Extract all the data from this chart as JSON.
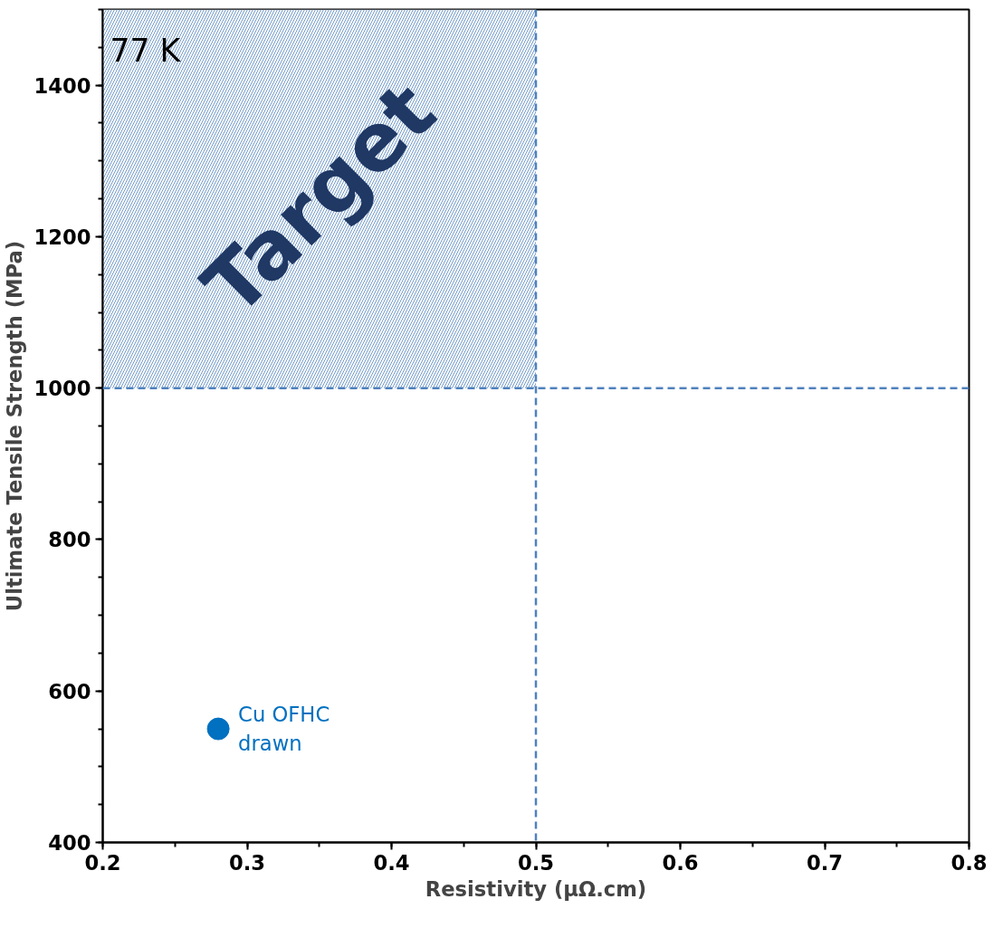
{
  "chart_data": {
    "type": "scatter",
    "xlabel": "Resistivity (µΩ.cm)",
    "ylabel": "Ultimate Tensile Strength (MPa)",
    "x": [
      0.28
    ],
    "values": [
      550
    ],
    "color": "#0070c0",
    "marker": "circle",
    "grid": false,
    "xlim": [
      0.2,
      0.8
    ],
    "xticks": [
      0.2,
      0.3,
      0.4,
      0.5,
      0.6,
      0.7,
      0.8
    ],
    "ylim": [
      400,
      1500
    ],
    "yticks": [
      400,
      600,
      800,
      1000,
      1200,
      1400
    ],
    "ref_lines": [
      {
        "axis": "x",
        "value": 0.5,
        "color": "#4f81bd",
        "line_style": "dashed"
      },
      {
        "axis": "y",
        "value": 1000,
        "color": "#4f81bd",
        "line_style": "dashed"
      }
    ],
    "bands": [
      {
        "axis": "y",
        "from": 1000,
        "to": 1500,
        "label": "Target",
        "color": "#4f81bd"
      }
    ],
    "annotations": [
      "77 K",
      {
        "text": "Cu OFHC\ndrawn",
        "x": 0.28,
        "y": 550
      }
    ]
  }
}
